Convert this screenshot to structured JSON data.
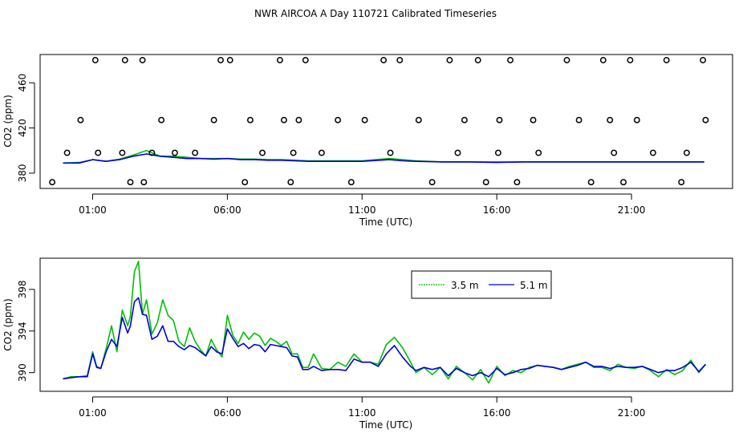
{
  "chart_title": "NWR AIRCOA A  Day 110721  Calibrated Timeseries",
  "colors": {
    "series_3_5m": "#00c000",
    "series_5_1m": "#0000dd",
    "points": "#000000",
    "axes": "#000000"
  },
  "chart_data": [
    {
      "type": "scatter+line",
      "xlabel": "Time (UTC)",
      "ylabel": "CO2 (ppm)",
      "xlim": [
        -0.95,
        24.75
      ],
      "ylim": [
        366.5,
        485
      ],
      "xticks": [
        1,
        6,
        11,
        16,
        21
      ],
      "xtick_labels": [
        "01:00",
        "06:00",
        "11:00",
        "16:00",
        "21:00"
      ],
      "yticks": [
        380,
        420,
        460
      ],
      "ytick_labels": [
        "380",
        "420",
        "460"
      ],
      "lines": [
        {
          "name": "3.5 m",
          "color": "#00c000",
          "x": [
            -0.1,
            0.5,
            1,
            1.5,
            2,
            2.5,
            3,
            3.5,
            4,
            4.5,
            5,
            5.5,
            6,
            6.5,
            7,
            7.5,
            8,
            9,
            10,
            11,
            12,
            12.5,
            13,
            14,
            15,
            16,
            17,
            18,
            19,
            20,
            21,
            22,
            23,
            23.7
          ],
          "y": [
            389,
            389.5,
            392,
            390.5,
            392.5,
            396,
            400,
            395,
            395,
            394,
            393,
            393,
            393,
            392.5,
            392.5,
            392,
            392,
            391,
            391,
            391,
            393,
            392,
            391,
            390,
            390,
            390,
            390,
            390,
            390,
            390,
            390,
            390,
            390,
            390
          ]
        },
        {
          "name": "5.1 m",
          "color": "#0000dd",
          "x": [
            -0.1,
            0.5,
            1,
            1.5,
            2,
            2.5,
            3,
            3.5,
            4,
            4.5,
            5,
            5.5,
            6,
            6.5,
            7,
            7.5,
            8,
            9,
            10,
            11,
            12,
            12.5,
            13,
            14,
            15,
            16,
            17,
            18,
            19,
            20,
            21,
            22,
            23,
            23.7
          ],
          "y": [
            389,
            389,
            392,
            390.5,
            392,
            395,
            397,
            395,
            394,
            393,
            393,
            392.5,
            393,
            392,
            392,
            391.5,
            391.5,
            390.5,
            390.5,
            390.5,
            392,
            391,
            390.5,
            390,
            390,
            389.5,
            390,
            390,
            390,
            390,
            390,
            390,
            390,
            390
          ]
        }
      ],
      "points": {
        "name": "flask / calibration samples",
        "x": [
          -0.5,
          0.05,
          0.55,
          1.1,
          1.2,
          2.1,
          2.2,
          2.4,
          2.85,
          2.9,
          3.2,
          3.55,
          4.05,
          4.8,
          5.5,
          5.75,
          6.1,
          6.65,
          6.85,
          7.3,
          7.95,
          8.1,
          8.35,
          8.45,
          8.65,
          8.9,
          9.5,
          10.1,
          10.6,
          11.1,
          11.8,
          12.05,
          12.4,
          13.1,
          13.6,
          14.25,
          14.55,
          14.8,
          15.3,
          15.6,
          16.05,
          16.1,
          16.5,
          16.75,
          17.35,
          17.55,
          18.6,
          19.05,
          19.5,
          19.95,
          20.2,
          20.35,
          20.7,
          20.95,
          21.2,
          21.8,
          22.3,
          22.85,
          23.05,
          23.65,
          23.75
        ],
        "y": [
          372,
          398,
          427,
          480,
          398,
          398,
          480,
          372,
          480,
          372,
          398,
          427,
          398,
          398,
          427,
          480,
          480,
          372,
          427,
          398,
          480,
          427,
          372,
          398,
          427,
          480,
          398,
          427,
          372,
          427,
          480,
          398,
          480,
          427,
          372,
          480,
          398,
          427,
          480,
          372,
          398,
          427,
          480,
          372,
          427,
          398,
          480,
          427,
          372,
          480,
          427,
          398,
          372,
          480,
          427,
          398,
          480,
          372,
          398,
          480,
          427
        ]
      }
    },
    {
      "type": "line",
      "xlabel": "Time (UTC)",
      "ylabel": "CO2 (ppm)",
      "xlim": [
        -0.95,
        24.75
      ],
      "ylim": [
        388.2,
        401
      ],
      "xticks": [
        1,
        6,
        11,
        16,
        21
      ],
      "xtick_labels": [
        "01:00",
        "06:00",
        "11:00",
        "16:00",
        "21:00"
      ],
      "yticks": [
        390,
        394,
        398
      ],
      "ytick_labels": [
        "390",
        "394",
        "398"
      ],
      "legend": {
        "placement": "top-center",
        "entries": [
          "3.5 m",
          "5.1 m"
        ]
      },
      "series": [
        {
          "name": "3.5 m",
          "color": "#00c000",
          "x": [
            -0.1,
            0.2,
            0.5,
            0.8,
            1.0,
            1.15,
            1.3,
            1.5,
            1.7,
            1.9,
            2.1,
            2.3,
            2.4,
            2.55,
            2.7,
            2.85,
            3.0,
            3.2,
            3.4,
            3.6,
            3.8,
            4.0,
            4.2,
            4.4,
            4.6,
            4.8,
            5.0,
            5.2,
            5.4,
            5.6,
            5.8,
            6.0,
            6.2,
            6.4,
            6.6,
            6.8,
            7.0,
            7.2,
            7.4,
            7.6,
            7.8,
            8.0,
            8.2,
            8.4,
            8.6,
            8.8,
            9.0,
            9.2,
            9.5,
            9.8,
            10.1,
            10.4,
            10.7,
            11.0,
            11.3,
            11.6,
            11.9,
            12.2,
            12.5,
            12.8,
            13.0,
            13.3,
            13.6,
            13.9,
            14.2,
            14.5,
            14.8,
            15.1,
            15.4,
            15.7,
            16.0,
            16.3,
            16.6,
            16.9,
            17.2,
            17.5,
            17.8,
            18.1,
            18.4,
            18.7,
            19.0,
            19.3,
            19.6,
            19.9,
            20.2,
            20.5,
            20.8,
            21.1,
            21.4,
            21.7,
            22.0,
            22.3,
            22.6,
            22.9,
            23.2,
            23.5,
            23.75
          ],
          "y": [
            389.4,
            389.6,
            389.6,
            389.7,
            392.0,
            390.6,
            390.4,
            392.3,
            394.5,
            392.0,
            396.0,
            394.5,
            395.4,
            399.7,
            400.7,
            395.6,
            397.0,
            393.7,
            394.8,
            397.0,
            395.5,
            395.0,
            393.0,
            392.5,
            394.3,
            393.0,
            392.2,
            391.6,
            393.2,
            392.2,
            391.5,
            395.5,
            393.6,
            392.8,
            393.9,
            393.2,
            393.8,
            393.5,
            392.6,
            393.3,
            393.0,
            392.6,
            393.0,
            391.8,
            391.8,
            390.5,
            390.5,
            391.8,
            390.4,
            390.3,
            391.0,
            390.6,
            391.8,
            391.0,
            391.0,
            390.8,
            392.7,
            393.4,
            392.4,
            391.0,
            390.0,
            390.5,
            389.8,
            390.5,
            389.4,
            390.6,
            390.0,
            389.3,
            390.3,
            389.0,
            390.6,
            389.7,
            390.2,
            390.0,
            390.5,
            390.7,
            390.6,
            390.5,
            390.3,
            390.6,
            390.8,
            391.0,
            390.5,
            390.5,
            390.2,
            390.8,
            390.5,
            390.4,
            390.6,
            390.2,
            389.6,
            390.3,
            389.8,
            390.2,
            391.2,
            390.0,
            390.8
          ]
        },
        {
          "name": "5.1 m",
          "color": "#0000dd",
          "x": [
            -0.1,
            0.2,
            0.5,
            0.8,
            1.0,
            1.15,
            1.3,
            1.5,
            1.7,
            1.9,
            2.1,
            2.3,
            2.4,
            2.55,
            2.7,
            2.85,
            3.0,
            3.2,
            3.4,
            3.6,
            3.8,
            4.0,
            4.2,
            4.4,
            4.6,
            4.8,
            5.0,
            5.2,
            5.4,
            5.6,
            5.8,
            6.0,
            6.2,
            6.4,
            6.6,
            6.8,
            7.0,
            7.2,
            7.4,
            7.6,
            7.8,
            8.0,
            8.2,
            8.4,
            8.6,
            8.8,
            9.0,
            9.2,
            9.5,
            9.8,
            10.1,
            10.4,
            10.7,
            11.0,
            11.3,
            11.6,
            11.9,
            12.2,
            12.5,
            12.8,
            13.0,
            13.3,
            13.6,
            13.9,
            14.2,
            14.5,
            14.8,
            15.1,
            15.4,
            15.7,
            16.0,
            16.3,
            16.6,
            16.9,
            17.2,
            17.5,
            17.8,
            18.1,
            18.4,
            18.7,
            19.0,
            19.3,
            19.6,
            19.9,
            20.2,
            20.5,
            20.8,
            21.1,
            21.4,
            21.7,
            22.0,
            22.3,
            22.6,
            22.9,
            23.2,
            23.5,
            23.75
          ],
          "y": [
            389.4,
            389.5,
            389.6,
            389.6,
            391.8,
            390.5,
            390.4,
            392.0,
            393.2,
            392.5,
            395.3,
            393.8,
            394.5,
            396.8,
            397.2,
            395.6,
            395.5,
            393.2,
            393.5,
            394.5,
            393.0,
            393.0,
            392.5,
            392.2,
            392.6,
            392.4,
            392.0,
            391.6,
            392.5,
            392.0,
            391.8,
            394.2,
            393.3,
            392.5,
            392.8,
            392.3,
            392.7,
            392.6,
            392.0,
            392.7,
            392.6,
            392.5,
            392.4,
            391.6,
            391.5,
            390.3,
            390.3,
            390.6,
            390.2,
            390.3,
            390.3,
            390.2,
            391.3,
            391.0,
            391.0,
            390.6,
            391.8,
            392.6,
            391.5,
            390.6,
            390.2,
            390.5,
            390.3,
            390.5,
            389.7,
            390.4,
            390.0,
            389.7,
            390.0,
            389.6,
            390.4,
            389.8,
            390.0,
            390.3,
            390.4,
            390.7,
            390.6,
            390.5,
            390.3,
            390.5,
            390.7,
            391.0,
            390.6,
            390.6,
            390.4,
            390.6,
            390.5,
            390.5,
            390.6,
            390.3,
            390.0,
            390.2,
            390.2,
            390.5,
            391.0,
            390.1,
            390.8
          ]
        }
      ]
    }
  ]
}
